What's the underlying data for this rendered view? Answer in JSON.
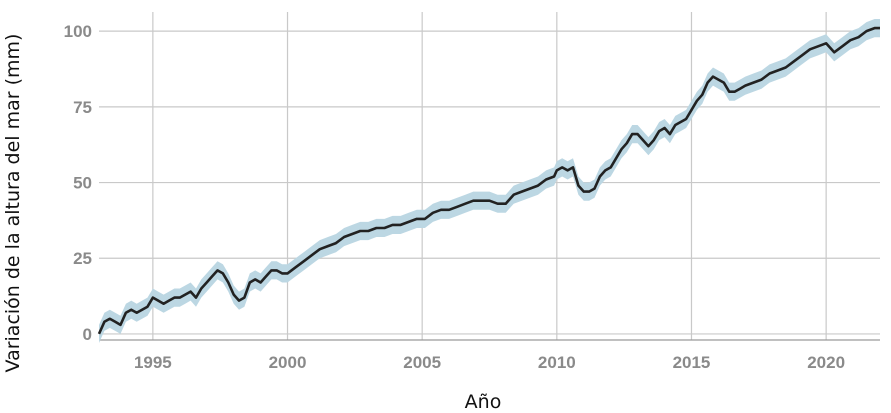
{
  "chart_data": {
    "type": "line",
    "title": "",
    "xlabel": "Año",
    "ylabel": "Variación de la altura del mar (mm)",
    "xlim": [
      1993,
      2022
    ],
    "ylim": [
      -2,
      105
    ],
    "xticks": [
      "1995",
      "2000",
      "2005",
      "2010",
      "2015",
      "2020"
    ],
    "yticks": [
      "0",
      "25",
      "50",
      "75",
      "100"
    ],
    "grid": true,
    "band_color": "#bcd7e3",
    "line_color": "#222222",
    "grid_color": "#c9c9c9",
    "series": [
      {
        "uncertainty_mm": 3,
        "x": [
          1993.0,
          1993.2,
          1993.4,
          1993.6,
          1993.8,
          1994.0,
          1994.2,
          1994.4,
          1994.6,
          1994.8,
          1995.0,
          1995.2,
          1995.4,
          1995.6,
          1995.8,
          1996.0,
          1996.2,
          1996.4,
          1996.6,
          1996.8,
          1997.0,
          1997.2,
          1997.4,
          1997.6,
          1997.8,
          1998.0,
          1998.2,
          1998.4,
          1998.6,
          1998.8,
          1999.0,
          1999.2,
          1999.4,
          1999.6,
          1999.8,
          2000.0,
          2000.3,
          2000.6,
          2000.9,
          2001.2,
          2001.5,
          2001.8,
          2002.1,
          2002.4,
          2002.7,
          2003.0,
          2003.3,
          2003.6,
          2003.9,
          2004.2,
          2004.5,
          2004.8,
          2005.1,
          2005.4,
          2005.7,
          2006.0,
          2006.3,
          2006.6,
          2006.9,
          2007.2,
          2007.5,
          2007.8,
          2008.1,
          2008.4,
          2008.7,
          2009.0,
          2009.3,
          2009.6,
          2009.9,
          2010.0,
          2010.2,
          2010.4,
          2010.6,
          2010.8,
          2011.0,
          2011.2,
          2011.4,
          2011.6,
          2011.8,
          2012.0,
          2012.2,
          2012.4,
          2012.6,
          2012.8,
          2013.0,
          2013.2,
          2013.4,
          2013.6,
          2013.8,
          2014.0,
          2014.2,
          2014.4,
          2014.6,
          2014.8,
          2015.0,
          2015.2,
          2015.4,
          2015.6,
          2015.8,
          2016.0,
          2016.2,
          2016.4,
          2016.6,
          2016.8,
          2017.0,
          2017.3,
          2017.6,
          2017.9,
          2018.2,
          2018.5,
          2018.8,
          2019.1,
          2019.4,
          2019.7,
          2020.0,
          2020.3,
          2020.6,
          2020.9,
          2021.2,
          2021.5,
          2021.8,
          2022.0
        ],
        "values": [
          0,
          4,
          5,
          4,
          3,
          7,
          8,
          7,
          8,
          9,
          12,
          11,
          10,
          11,
          12,
          12,
          13,
          14,
          12,
          15,
          17,
          19,
          21,
          20,
          17,
          13,
          11,
          12,
          17,
          18,
          17,
          19,
          21,
          21,
          20,
          20,
          22,
          24,
          26,
          28,
          29,
          30,
          32,
          33,
          34,
          34,
          35,
          35,
          36,
          36,
          37,
          38,
          38,
          40,
          41,
          41,
          42,
          43,
          44,
          44,
          44,
          43,
          43,
          46,
          47,
          48,
          49,
          51,
          52,
          54,
          55,
          54,
          55,
          49,
          47,
          47,
          48,
          52,
          54,
          55,
          58,
          61,
          63,
          66,
          66,
          64,
          62,
          64,
          67,
          68,
          66,
          69,
          70,
          71,
          74,
          77,
          79,
          83,
          85,
          84,
          83,
          80,
          80,
          81,
          82,
          83,
          84,
          86,
          87,
          88,
          90,
          92,
          94,
          95,
          96,
          93,
          95,
          97,
          98,
          100,
          101,
          101
        ]
      }
    ]
  }
}
